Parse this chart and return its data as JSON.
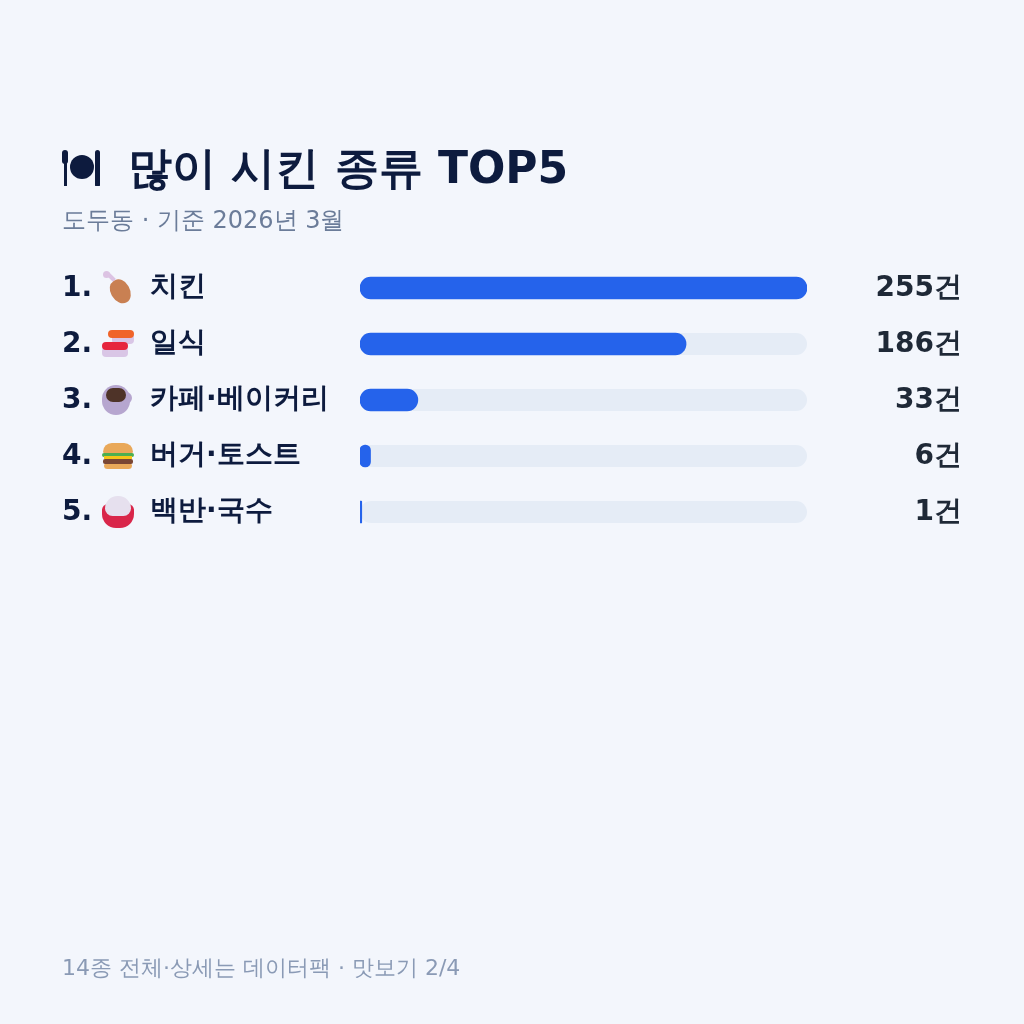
{
  "chart_data": {
    "type": "bar",
    "orientation": "horizontal",
    "title": "많이 시킨 종류 TOP5",
    "subtitle": "도두동 · 기준 2026년 3월",
    "categories": [
      "치킨",
      "일식",
      "카페·베이커리",
      "버거·토스트",
      "백반·국수"
    ],
    "values": [
      255,
      186,
      33,
      6,
      1
    ],
    "color": "#2563eb",
    "value_labels": [
      "255건",
      "186건",
      "33건",
      "6건",
      "1건"
    ],
    "tick_labels": "y",
    "annotations": [
      "1.",
      "2.",
      "3.",
      "4.",
      "5.",
      "14종 전체·상세는 데이터팩 · 맛보기 2/4"
    ]
  }
}
